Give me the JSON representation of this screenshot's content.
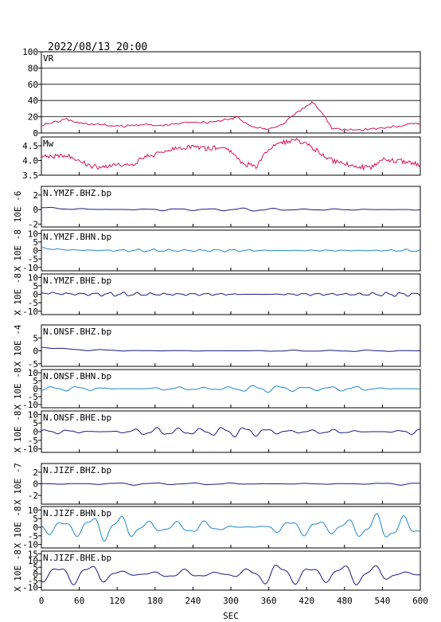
{
  "header": {
    "datetime": "2022/08/13 20:00"
  },
  "x_axis": {
    "label": "SEC",
    "range": [
      0,
      600
    ],
    "ticks": [
      "0",
      "60",
      "120",
      "180",
      "240",
      "300",
      "360",
      "420",
      "480",
      "540",
      "600"
    ]
  },
  "chart_data": [
    {
      "type": "line",
      "panel": "vr",
      "title": "VR",
      "ylim": [
        0,
        100
      ],
      "yticks": [
        0,
        20,
        40,
        60,
        80,
        100
      ],
      "grid": true,
      "color": "#d4145a",
      "x": [
        0,
        20,
        40,
        60,
        80,
        100,
        120,
        140,
        160,
        180,
        200,
        220,
        240,
        260,
        280,
        300,
        310,
        320,
        340,
        360,
        380,
        400,
        420,
        430,
        450,
        460,
        480,
        500,
        520,
        540,
        560,
        580,
        600
      ],
      "y": [
        10,
        13,
        17,
        12,
        11,
        10,
        8,
        9,
        11,
        9,
        10,
        12,
        14,
        13,
        15,
        17,
        20,
        14,
        6,
        5,
        10,
        22,
        33,
        38,
        20,
        6,
        4,
        4,
        5,
        6,
        8,
        10,
        12
      ]
    },
    {
      "type": "line",
      "panel": "mw",
      "title": "Mw",
      "ylim": [
        3.5,
        4.8
      ],
      "yticks": [
        "3.5",
        "4.0",
        "4.5"
      ],
      "color": "#d4145a",
      "x": [
        0,
        20,
        40,
        60,
        80,
        100,
        120,
        140,
        160,
        180,
        200,
        220,
        240,
        260,
        280,
        300,
        320,
        340,
        360,
        380,
        400,
        420,
        440,
        460,
        480,
        500,
        520,
        540,
        560,
        580,
        600
      ],
      "y": [
        4.1,
        4.15,
        4.2,
        4.0,
        3.8,
        3.75,
        3.9,
        3.8,
        4.1,
        4.2,
        4.35,
        4.4,
        4.5,
        4.4,
        4.45,
        4.3,
        3.9,
        3.8,
        4.4,
        4.6,
        4.7,
        4.55,
        4.3,
        4.0,
        3.9,
        3.8,
        3.75,
        4.05,
        4.0,
        3.95,
        3.85
      ]
    },
    {
      "type": "line",
      "panel": "wave",
      "title": "N.YMZF.BHZ.bp",
      "ylabel": "10E -6",
      "ylim": [
        -2.4,
        3.2
      ],
      "yticks": [
        "2",
        "0",
        "-2"
      ],
      "color": "#1a1a80",
      "amp": 0.15,
      "period": 50,
      "offset": 0.3,
      "decay": 40
    },
    {
      "type": "line",
      "panel": "wave",
      "title": "N.YMZF.BHN.bp",
      "ylabel": "X 10E -8",
      "ylim": [
        -12,
        12
      ],
      "yticks": [
        "10",
        "5",
        "0",
        "-5",
        "-10"
      ],
      "color": "#1e88c8",
      "amp": 0.6,
      "period": 25,
      "offset": 1.5,
      "decay": 30
    },
    {
      "type": "line",
      "panel": "wave",
      "title": "N.YMZF.BHE.bp",
      "ylabel": "X 10E -8",
      "ylim": [
        -12,
        12
      ],
      "yticks": [
        "10",
        "5",
        "0",
        "-5",
        "-10"
      ],
      "color": "#1a1a80",
      "amp": 0.8,
      "period": 22,
      "offset": 1.0,
      "decay": 30
    },
    {
      "type": "line",
      "panel": "wave",
      "title": "N.ONSF.BHZ.bp",
      "ylabel": "X 10E -4",
      "ylim": [
        -6,
        10
      ],
      "yticks": [
        "5",
        "0",
        "-5"
      ],
      "color": "#1a1a80",
      "amp": 0.2,
      "period": 60,
      "offset": 1.5,
      "decay": 50
    },
    {
      "type": "line",
      "panel": "wave",
      "title": "N.ONSF.BHN.bp",
      "ylabel": "X 10E -8",
      "ylim": [
        -12,
        12
      ],
      "yticks": [
        "10",
        "5",
        "0",
        "-5",
        "-10"
      ],
      "color": "#1e88c8",
      "amp": 1.5,
      "period": 40,
      "offset": 0,
      "decay": 0
    },
    {
      "type": "line",
      "panel": "wave",
      "title": "N.ONSF.BHE.bp",
      "ylabel": "X 10E -8",
      "ylim": [
        -12,
        12
      ],
      "yticks": [
        "10",
        "5",
        "0",
        "-5",
        "-10"
      ],
      "color": "#1a1a80",
      "amp": 2.0,
      "period": 35,
      "offset": 0,
      "decay": 0
    },
    {
      "type": "line",
      "panel": "wave",
      "title": "N.JIZF.BHZ.bp",
      "ylabel": "X 10E -7",
      "ylim": [
        -3.5,
        3.5
      ],
      "yticks": [
        "2",
        "0",
        "-2"
      ],
      "color": "#1a1a80",
      "amp": 0.15,
      "period": 60,
      "offset": 0,
      "decay": 0
    },
    {
      "type": "line",
      "panel": "wave",
      "title": "N.JIZF.BHN.bp",
      "ylabel": "X 10E -8",
      "ylim": [
        -12,
        12
      ],
      "yticks": [
        "10",
        "5",
        "0",
        "-5",
        "-10"
      ],
      "color": "#1e88c8",
      "amp": 5.0,
      "period": 45,
      "offset": 0,
      "decay": 0
    },
    {
      "type": "line",
      "panel": "wave",
      "title": "N.JIZF.BHE.bp",
      "ylabel": "X 10E -8",
      "ylim": [
        -12,
        17
      ],
      "yticks": [
        "15",
        "10",
        "5",
        "0",
        "-5",
        "-10"
      ],
      "color": "#1a1a80",
      "amp": 6.0,
      "period": 50,
      "offset": 0,
      "decay": 0
    }
  ]
}
